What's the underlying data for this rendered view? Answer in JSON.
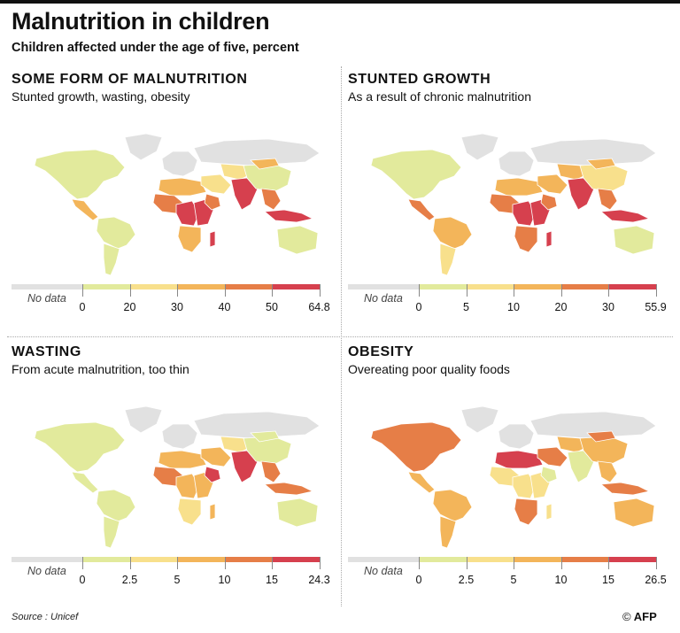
{
  "header": {
    "title": "Malnutrition in children",
    "subtitle": "Children affected under the age of five, percent"
  },
  "legend_nodata": "No data",
  "footer": {
    "source": "Source : Unicef",
    "credit_symbol": "©",
    "credit": "AFP"
  },
  "colors": {
    "nodata": "#e1e1e1",
    "scale": [
      "#e2ea9c",
      "#f8e08c",
      "#f3b55a",
      "#e67e47",
      "#d6404e"
    ]
  },
  "chart_data": [
    {
      "type": "choropleth-map",
      "title": "SOME FORM OF MALNUTRITION",
      "subtitle": "Stunted growth, wasting, obesity",
      "bins": [
        0,
        20,
        30,
        40,
        50,
        64.8
      ],
      "bin_labels": [
        "0",
        "20",
        "30",
        "40",
        "50",
        "64.8"
      ],
      "regions": {
        "north_america": 0,
        "greenland": -1,
        "central_america": 2,
        "south_america": 0,
        "south_america_south": 0,
        "europe": -1,
        "north_africa": 2,
        "west_africa": 3,
        "central_africa": 4,
        "east_africa": 4,
        "horn_africa": 3,
        "southern_africa": 2,
        "madagascar": 4,
        "middle_east": 1,
        "russia": -1,
        "central_asia": 1,
        "south_asia": 4,
        "china": 0,
        "mongolia": 2,
        "southeast_asia": 3,
        "indonesia": 4,
        "australia": 0
      }
    },
    {
      "type": "choropleth-map",
      "title": "STUNTED GROWTH",
      "subtitle": "As a result of chronic malnutrition",
      "bins": [
        0,
        5,
        10,
        20,
        30,
        55.9
      ],
      "bin_labels": [
        "0",
        "5",
        "10",
        "20",
        "30",
        "55.9"
      ],
      "regions": {
        "north_america": 0,
        "greenland": -1,
        "central_america": 3,
        "south_america": 2,
        "south_america_south": 1,
        "europe": -1,
        "north_africa": 2,
        "west_africa": 3,
        "central_africa": 4,
        "east_africa": 4,
        "horn_africa": 3,
        "southern_africa": 3,
        "madagascar": 4,
        "middle_east": 2,
        "russia": -1,
        "central_asia": 2,
        "south_asia": 4,
        "china": 1,
        "mongolia": 2,
        "southeast_asia": 3,
        "indonesia": 4,
        "australia": 0
      }
    },
    {
      "type": "choropleth-map",
      "title": "WASTING",
      "subtitle": "From acute malnutrition, too thin",
      "bins": [
        0,
        2.5,
        5,
        10,
        15,
        24.3
      ],
      "bin_labels": [
        "0",
        "2.5",
        "5",
        "10",
        "15",
        "24.3"
      ],
      "regions": {
        "north_america": 0,
        "greenland": -1,
        "central_america": 0,
        "south_america": 0,
        "south_america_south": 0,
        "europe": -1,
        "north_africa": 2,
        "west_africa": 3,
        "central_africa": 2,
        "east_africa": 2,
        "horn_africa": 4,
        "southern_africa": 1,
        "madagascar": 2,
        "middle_east": 2,
        "russia": -1,
        "central_asia": 1,
        "south_asia": 4,
        "china": 0,
        "mongolia": 0,
        "southeast_asia": 3,
        "indonesia": 3,
        "australia": 0
      }
    },
    {
      "type": "choropleth-map",
      "title": "OBESITY",
      "subtitle": "Overeating poor quality foods",
      "bins": [
        0,
        2.5,
        5,
        10,
        15,
        26.5
      ],
      "bin_labels": [
        "0",
        "2.5",
        "5",
        "10",
        "15",
        "26.5"
      ],
      "regions": {
        "north_america": 3,
        "greenland": -1,
        "central_america": 2,
        "south_america": 2,
        "south_america_south": 2,
        "europe": -1,
        "north_africa": 4,
        "west_africa": 1,
        "central_africa": 1,
        "east_africa": 1,
        "horn_africa": 0,
        "southern_africa": 3,
        "madagascar": 1,
        "middle_east": 3,
        "russia": -1,
        "central_asia": 2,
        "south_asia": 0,
        "china": 2,
        "mongolia": 3,
        "southeast_asia": 2,
        "indonesia": 3,
        "australia": 2
      }
    }
  ]
}
